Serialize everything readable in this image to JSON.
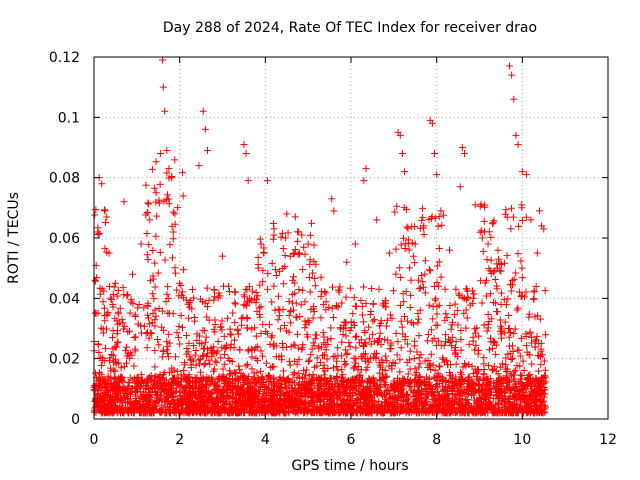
{
  "chart_data": {
    "type": "scatter",
    "title": "Day 288 of 2024, Rate Of TEC Index for receiver drao",
    "xlabel": "GPS time / hours",
    "ylabel": "ROTI / TECUs",
    "xlim": [
      0,
      12
    ],
    "ylim": [
      0,
      0.12
    ],
    "xticks": [
      0,
      2,
      4,
      6,
      8,
      10,
      12
    ],
    "yticks": [
      0,
      0.02,
      0.04,
      0.06,
      0.08,
      0.1,
      0.12
    ],
    "xtick_labels": [
      "0",
      "2",
      "4",
      "6",
      "8",
      "10",
      "12"
    ],
    "ytick_labels": [
      "0",
      "0.02",
      "0.04",
      "0.06",
      "0.08",
      "0.1",
      "0.12"
    ],
    "grid": true,
    "marker": "+",
    "color": "#ff0000",
    "x_data_range": [
      0,
      10.55
    ],
    "series": [
      {
        "name": "ROTI",
        "x": [
          0.05,
          0.12,
          0.18,
          0.25,
          0.35,
          0.5,
          0.7,
          0.9,
          1.1,
          1.3,
          1.45,
          1.55,
          1.6,
          1.62,
          1.65,
          1.7,
          1.75,
          1.85,
          2.0,
          2.2,
          2.45,
          2.55,
          2.6,
          2.65,
          3.0,
          3.3,
          3.5,
          3.55,
          3.6,
          3.9,
          4.05,
          4.2,
          4.5,
          4.7,
          4.85,
          5.0,
          5.3,
          5.55,
          5.6,
          5.9,
          6.1,
          6.3,
          6.35,
          6.6,
          6.9,
          7.1,
          7.15,
          7.2,
          7.25,
          7.5,
          7.7,
          7.85,
          7.9,
          7.95,
          8.0,
          8.1,
          8.3,
          8.55,
          8.6,
          8.65,
          8.9,
          9.2,
          9.5,
          9.7,
          9.75,
          9.8,
          9.85,
          9.9,
          10.0,
          10.1,
          10.2,
          10.35,
          10.4,
          10.45,
          10.5
        ],
        "y": [
          0.035,
          0.08,
          0.078,
          0.069,
          0.055,
          0.045,
          0.072,
          0.048,
          0.058,
          0.066,
          0.075,
          0.088,
          0.119,
          0.11,
          0.102,
          0.089,
          0.083,
          0.062,
          0.045,
          0.038,
          0.084,
          0.102,
          0.096,
          0.089,
          0.054,
          0.042,
          0.091,
          0.088,
          0.079,
          0.058,
          0.079,
          0.061,
          0.068,
          0.067,
          0.061,
          0.058,
          0.047,
          0.073,
          0.069,
          0.052,
          0.058,
          0.079,
          0.083,
          0.066,
          0.055,
          0.095,
          0.094,
          0.088,
          0.082,
          0.058,
          0.064,
          0.099,
          0.098,
          0.088,
          0.081,
          0.069,
          0.056,
          0.077,
          0.09,
          0.088,
          0.071,
          0.058,
          0.049,
          0.117,
          0.114,
          0.106,
          0.094,
          0.091,
          0.082,
          0.081,
          0.066,
          0.055,
          0.069,
          0.064,
          0.063
        ]
      }
    ]
  }
}
